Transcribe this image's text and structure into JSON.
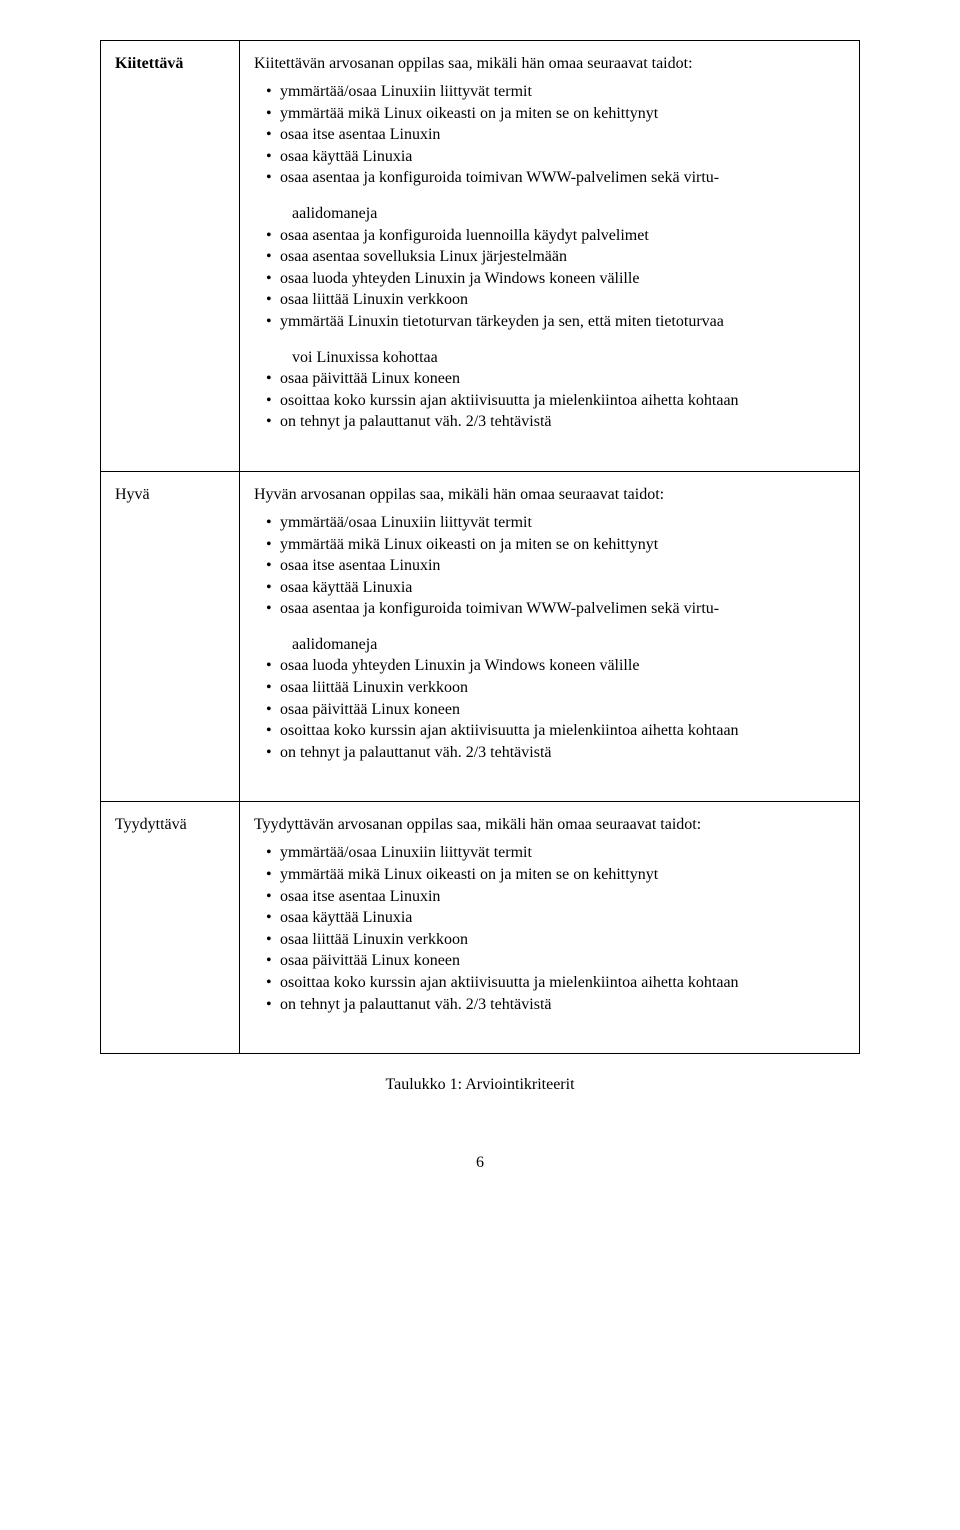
{
  "rows": [
    {
      "label": "Kiitettävä",
      "bold": true,
      "intro": "Kiitettävän arvosanan oppilas saa, mikäli hän omaa seuraavat taidot:",
      "items": [
        {
          "t": "ymmärtää/osaa Linuxiin liittyvät termit"
        },
        {
          "t": "ymmärtää mikä Linux oikeasti on ja miten se on kehittynyt"
        },
        {
          "t": "osaa itse asentaa Linuxin"
        },
        {
          "t": "osaa käyttää Linuxia"
        },
        {
          "t": "osaa asentaa ja konfiguroida toimivan WWW-palvelimen sekä virtu-"
        },
        {
          "t": "aalidomaneja",
          "sub": true
        },
        {
          "t": "osaa asentaa ja konfiguroida luennoilla käydyt palvelimet"
        },
        {
          "t": "osaa asentaa sovelluksia Linux järjestelmään"
        },
        {
          "t": "osaa luoda yhteyden Linuxin ja Windows koneen välille"
        },
        {
          "t": "osaa liittää Linuxin verkkoon"
        },
        {
          "t": "ymmärtää Linuxin tietoturvan tärkeyden ja sen, että miten tietoturvaa"
        },
        {
          "t": "voi Linuxissa kohottaa",
          "sub": true
        },
        {
          "t": "osaa päivittää Linux koneen"
        },
        {
          "t": "osoittaa koko kurssin ajan aktiivisuutta ja mielenkiintoa aihetta kohtaan"
        },
        {
          "t": "on tehnyt ja palauttanut väh. 2/3 tehtävistä",
          "frac": true
        }
      ]
    },
    {
      "label": "Hyvä",
      "bold": false,
      "intro": "Hyvän arvosanan oppilas saa, mikäli hän omaa seuraavat taidot:",
      "items": [
        {
          "t": "ymmärtää/osaa Linuxiin liittyvät termit"
        },
        {
          "t": "ymmärtää mikä Linux oikeasti on ja miten se on kehittynyt"
        },
        {
          "t": "osaa itse asentaa Linuxin"
        },
        {
          "t": "osaa käyttää Linuxia"
        },
        {
          "t": "osaa asentaa ja konfiguroida toimivan WWW-palvelimen sekä virtu-"
        },
        {
          "t": "aalidomaneja",
          "sub": true
        },
        {
          "t": "osaa luoda yhteyden Linuxin ja Windows koneen välille"
        },
        {
          "t": "osaa liittää Linuxin verkkoon"
        },
        {
          "t": "osaa päivittää Linux koneen"
        },
        {
          "t": "osoittaa koko kurssin ajan aktiivisuutta ja mielenkiintoa aihetta kohtaan"
        },
        {
          "t": "on tehnyt ja palauttanut väh. 2/3 tehtävistä",
          "frac": true
        }
      ]
    },
    {
      "label": "Tyydyttävä",
      "bold": false,
      "intro": "Tyydyttävän arvosanan oppilas saa, mikäli hän omaa seuraavat taidot:",
      "items": [
        {
          "t": "ymmärtää/osaa Linuxiin liittyvät termit"
        },
        {
          "t": "ymmärtää mikä Linux oikeasti on ja miten se on kehittynyt"
        },
        {
          "t": "osaa itse asentaa Linuxin"
        },
        {
          "t": "osaa käyttää Linuxia"
        },
        {
          "t": "osaa liittää Linuxin verkkoon"
        },
        {
          "t": "osaa päivittää Linux koneen"
        },
        {
          "t": "osoittaa koko kurssin ajan aktiivisuutta ja mielenkiintoa aihetta kohtaan"
        },
        {
          "t": "on tehnyt ja palauttanut väh. 2/3 tehtävistä",
          "frac": true
        }
      ]
    }
  ],
  "caption": "Taulukko 1: Arviointikriteerit",
  "pagenum": "6",
  "frac_text_prefix": "on tehnyt ja palauttanut väh. ",
  "frac_text_suffix": " tehtävistä",
  "frac_num": "2",
  "frac_den": "3"
}
